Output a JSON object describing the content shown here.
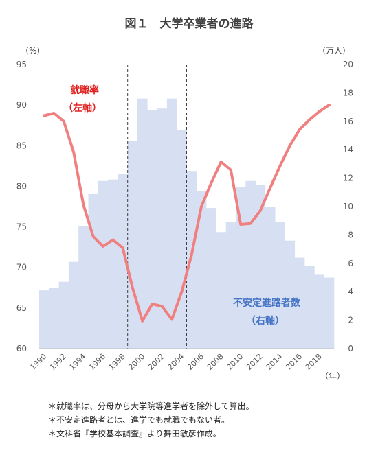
{
  "title": "図１　大学卒業者の進路",
  "chart_data": {
    "type": "bar+line",
    "x": [
      1990,
      1991,
      1992,
      1993,
      1994,
      1995,
      1996,
      1997,
      1998,
      1999,
      2000,
      2001,
      2002,
      2003,
      2004,
      2005,
      2006,
      2007,
      2008,
      2009,
      2010,
      2011,
      2012,
      2013,
      2014,
      2015,
      2016,
      2017,
      2018,
      2019
    ],
    "x_tick_labels": [
      "1990",
      "1992",
      "1994",
      "1996",
      "1998",
      "2000",
      "2002",
      "2004",
      "2006",
      "2008",
      "2010",
      "2012",
      "2014",
      "2016",
      "2018"
    ],
    "left_axis": {
      "unit": "（%）",
      "ylim": [
        60,
        95
      ],
      "ticks": [
        60,
        65,
        70,
        75,
        80,
        85,
        90,
        95
      ]
    },
    "right_axis": {
      "unit": "（万人）",
      "ylim": [
        0,
        20
      ],
      "ticks": [
        0,
        2,
        4,
        6,
        8,
        10,
        12,
        14,
        16,
        18,
        20
      ]
    },
    "x_unit": "（年）",
    "series": [
      {
        "label_lines": [
          "不安定進路者数",
          "（右軸）"
        ],
        "kind": "bar",
        "axis": "right",
        "color": "#d6e0f2",
        "label_color": "#4472c4",
        "values": [
          4.1,
          4.3,
          4.7,
          6.1,
          8.6,
          10.9,
          11.8,
          11.9,
          12.3,
          14.6,
          17.6,
          16.8,
          16.9,
          17.6,
          15.4,
          12.5,
          11.1,
          9.9,
          8.2,
          8.9,
          11.4,
          11.8,
          11.5,
          10.0,
          8.9,
          7.6,
          6.4,
          5.8,
          5.2,
          5.0
        ]
      },
      {
        "label_lines": [
          "就職率",
          "（左軸）"
        ],
        "kind": "line",
        "axis": "left",
        "color": "#f08080",
        "label_color": "#e02020",
        "values": [
          88.7,
          89.0,
          88.0,
          84.2,
          77.7,
          73.8,
          72.6,
          73.4,
          72.4,
          67.5,
          63.4,
          65.5,
          65.2,
          63.6,
          67.0,
          71.5,
          77.5,
          80.4,
          83.0,
          82.0,
          75.3,
          75.4,
          77.0,
          79.8,
          82.5,
          85.0,
          87.0,
          88.2,
          89.2,
          90.0
        ]
      }
    ],
    "vlines_dashed": [
      1998.5,
      2004.5
    ],
    "grid": false
  },
  "notes": [
    "＊就職率は、分母から大学院等進学者を除外して算出。",
    "＊不安定進路者とは、進学でも就職でもない者。",
    "＊文科省『学校基本調査』より舞田敏彦作成。"
  ]
}
